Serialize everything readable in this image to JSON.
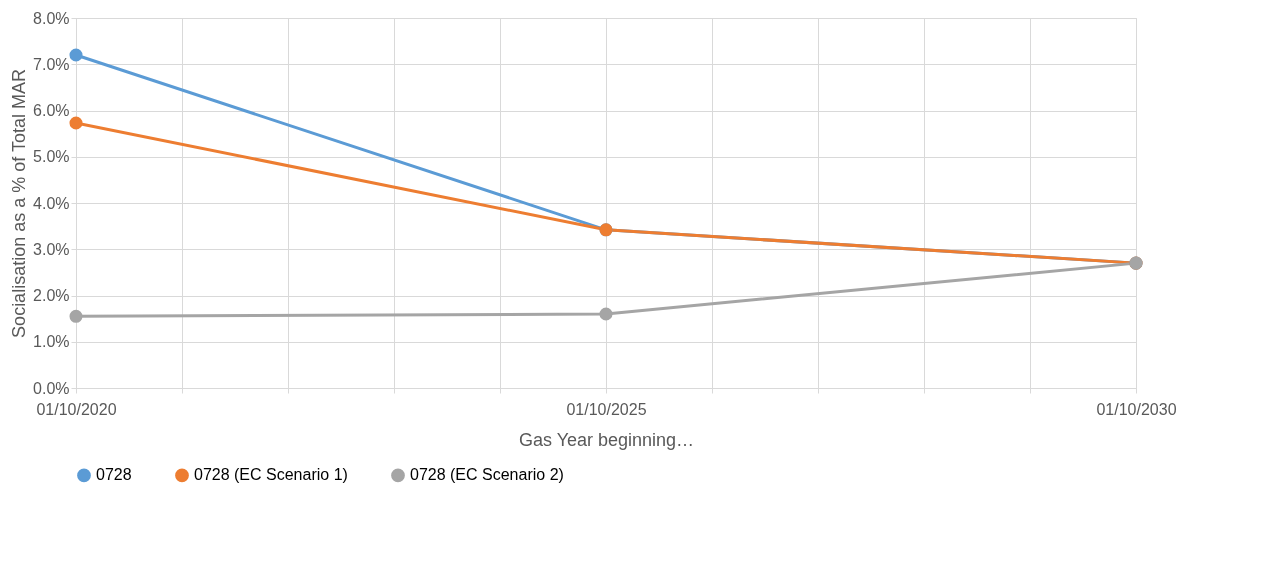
{
  "chart_data": {
    "type": "line",
    "xlabel": "Gas Year beginning…",
    "ylabel": "Socialisation as a % of Total MAR",
    "x": [
      "2020-10-01",
      "2025-10-01",
      "2030-10-01"
    ],
    "series": [
      {
        "name": "0728",
        "color": "#5b9bd5",
        "values": [
          7.2,
          3.42,
          2.7
        ]
      },
      {
        "name": "0728 (EC Scenario 1)",
        "color": "#ed7d31",
        "values": [
          5.73,
          3.42,
          2.7
        ]
      },
      {
        "name": "0728 (EC Scenario 2)",
        "color": "#a5a5a5",
        "values": [
          1.55,
          1.6,
          2.7
        ]
      }
    ],
    "xlim": [
      "2020-10-01",
      "2030-10-01"
    ],
    "xticks": [
      {
        "value": "2020-10-01",
        "label": "01/10/2020"
      },
      {
        "value": "2021-10-01",
        "label": null
      },
      {
        "value": "2022-10-01",
        "label": null
      },
      {
        "value": "2023-10-01",
        "label": null
      },
      {
        "value": "2024-10-01",
        "label": null
      },
      {
        "value": "2025-10-01",
        "label": "01/10/2025"
      },
      {
        "value": "2026-10-01",
        "label": null
      },
      {
        "value": "2027-10-01",
        "label": null
      },
      {
        "value": "2028-10-01",
        "label": null
      },
      {
        "value": "2029-10-01",
        "label": null
      },
      {
        "value": "2030-10-01",
        "label": "01/10/2030"
      }
    ],
    "ylim": [
      0,
      8
    ],
    "yticks": [
      {
        "value": 0,
        "label": "0.0%"
      },
      {
        "value": 1,
        "label": "1.0%"
      },
      {
        "value": 2,
        "label": "2.0%"
      },
      {
        "value": 3,
        "label": "3.0%"
      },
      {
        "value": 4,
        "label": "4.0%"
      },
      {
        "value": 5,
        "label": "5.0%"
      },
      {
        "value": 6,
        "label": "6.0%"
      },
      {
        "value": 7,
        "label": "7.0%"
      },
      {
        "value": 8,
        "label": "8.0%"
      }
    ],
    "grid": true,
    "legend": "bottom",
    "marker": "circle",
    "line_style": "solid"
  }
}
